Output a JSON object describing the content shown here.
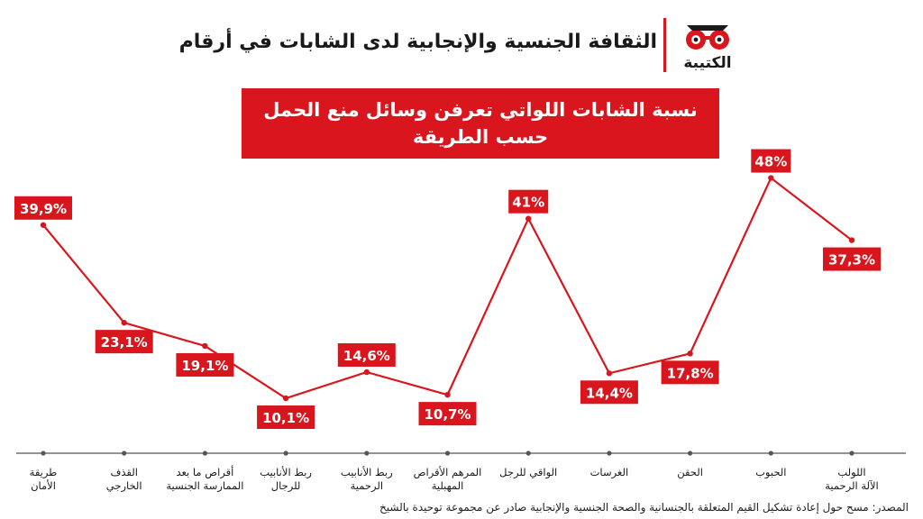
{
  "header": {
    "title": "الثقافة الجنسية والإنجابية لدى الشابات في أرقام",
    "logo_text": "الكتيبة"
  },
  "colors": {
    "accent": "#d9161d",
    "text": "#1a1a1a"
  },
  "chart_data": {
    "type": "line",
    "title_line1": "نسبة الشابات اللواتي تعرفن وسائل منع الحمل",
    "title_line2": "حسب الطريقة",
    "categories": [
      [
        "طريقة",
        "الأمان"
      ],
      [
        "القذف",
        "الخارجي"
      ],
      [
        "أقراص ما بعد",
        "الممارسة الجنسية"
      ],
      [
        "ربط الأنابيب",
        "للرجال"
      ],
      [
        "ربط الأنابيب",
        "الرحمية"
      ],
      [
        "المرهم الأقراص",
        "المهبلية"
      ],
      [
        "الواقي للرجل"
      ],
      [
        "الغرسات"
      ],
      [
        "الحقن"
      ],
      [
        "الحبوب"
      ],
      [
        "اللولب",
        "الآلة الرحمية"
      ]
    ],
    "values": [
      39.9,
      23.1,
      19.1,
      10.1,
      14.6,
      10.7,
      41,
      14.4,
      17.8,
      48,
      37.3
    ],
    "labels": [
      "39,9%",
      "23,1%",
      "19,1%",
      "10,1%",
      "14,6%",
      "10,7%",
      "41%",
      "14,4%",
      "17,8%",
      "48%",
      "37,3%"
    ],
    "label_positions": [
      "above",
      "below",
      "below",
      "below",
      "above",
      "below",
      "above",
      "below",
      "below",
      "above",
      "below"
    ],
    "ylim": [
      0,
      55
    ],
    "grid": false,
    "legend": "none"
  },
  "footer": {
    "source": "المصدر: مسح حول إعادة تشكيل القيم المتعلقة بالجنسانية والصحة الجنسية والإنجابية صادر عن مجموعة توحيدة بالشيخ"
  }
}
